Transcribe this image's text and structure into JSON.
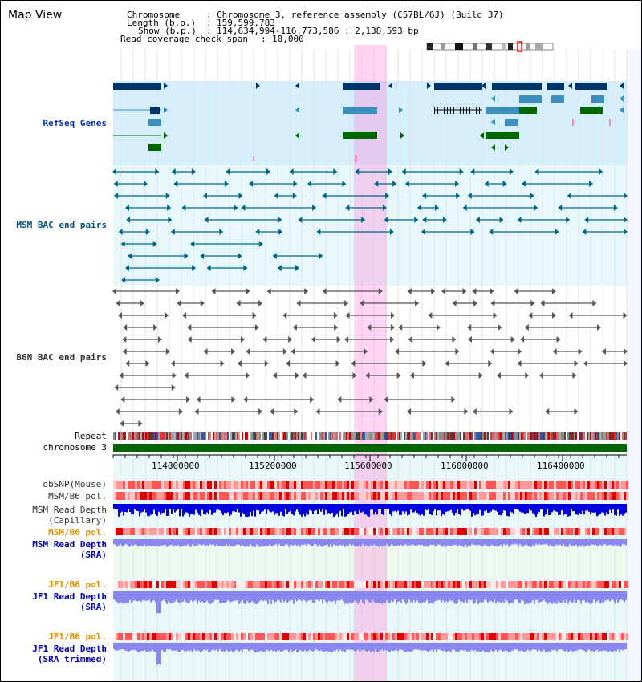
{
  "title": "Map View",
  "info": {
    "chromosome_label": "Chromosome",
    "chromosome_value": "Chromosome 3, reference assembly (C57BL/6J) (Build 37)",
    "length_label": "Length (b.p.)",
    "length_value": "159,599,783",
    "show_label": "Show (b.p.)",
    "show_value": "114,634,994-116,773,586 : 2,138,593 bp",
    "coverage_label": "Read coverage check span",
    "coverage_value": "10,000"
  },
  "tracks": {
    "refseq": "RefSeq Genes",
    "msm_bac": "MSM BAC end pairs",
    "b6n_bac": "B6N BAC end pairs",
    "repeat": "Repeat",
    "chromosome": "chromosome 3",
    "dbsnp": "dbSNP(Mouse)",
    "msm_b6_pol_1": "MSM/B6 pol.",
    "msm_depth_cap_1": "MSM Read Depth",
    "msm_depth_cap_2": "(Capillary)",
    "msm_b6_pol_2": "MSM/B6 pol.",
    "msm_depth_sra_1": "MSM Read Depth",
    "msm_depth_sra_2": "(SRA)",
    "jf1_pol_1": "JF1/B6 pol.",
    "jf1_depth_1": "JF1 Read Depth",
    "jf1_depth_1b": "(SRA)",
    "jf1_pol_2": "JF1/B6 pol.",
    "jf1_depth_2": "JF1 Read Depth",
    "jf1_depth_2b": "(SRA trimmed)"
  },
  "axis_ticks": [
    "114800000",
    "115200000",
    "115600000",
    "116000000",
    "116400000"
  ],
  "colors": {
    "highlight": "#ff88dd",
    "refseq_bg": "#d4eefa",
    "msm_bg": "#e6f8fa",
    "refseq_dark": "#003366",
    "refseq_mid": "#3b8fbf",
    "refseq_green": "#006600",
    "msm_feature": "#006688",
    "b6n_feature": "#555555",
    "chromosome_bar": "#006600",
    "read_depth_dark": "#0000dd",
    "read_depth_light": "#8888ee"
  }
}
